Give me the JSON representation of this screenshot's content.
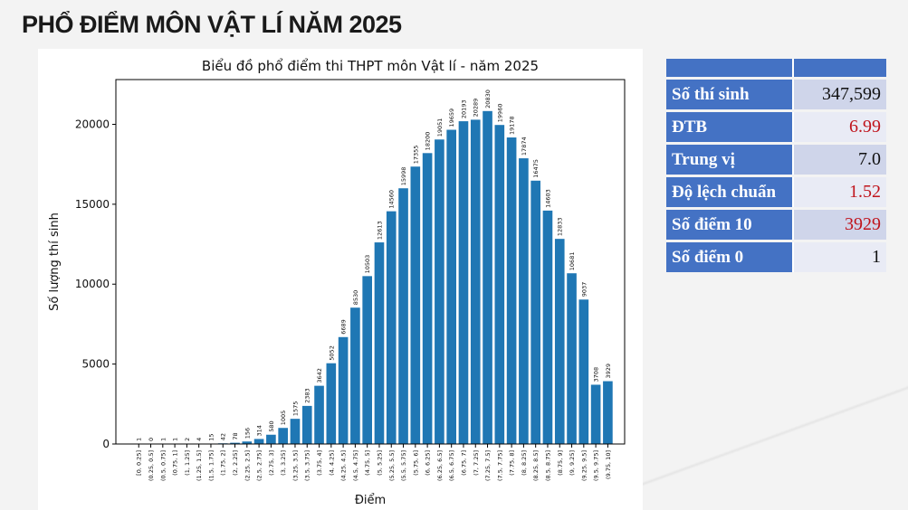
{
  "page_title": "PHỔ ĐIỂM MÔN VẬT LÍ NĂM 2025",
  "stats": [
    {
      "label": "Số thí sinh",
      "value": "347,599",
      "highlight": false
    },
    {
      "label": "ĐTB",
      "value": "6.99",
      "highlight": true
    },
    {
      "label": "Trung vị",
      "value": "7.0",
      "highlight": false
    },
    {
      "label": "Độ lệch chuẩn",
      "value": "1.52",
      "highlight": true
    },
    {
      "label": "Số điểm 10",
      "value": "3929",
      "highlight": true
    },
    {
      "label": "Số điểm 0",
      "value": "1",
      "highlight": false
    }
  ],
  "chart_data": {
    "type": "bar",
    "title": "Biểu đồ phổ điểm thi THPT môn Vật lí - năm 2025",
    "xlabel": "Điểm",
    "ylabel": "Số lượng thí sinh",
    "ylim": [
      0,
      22800
    ],
    "yticks": [
      0,
      5000,
      10000,
      15000,
      20000
    ],
    "bar_color": "#1f77b4",
    "categories": [
      "[0, 0.25]",
      "(0.25, 0.5]",
      "(0.5, 0.75]",
      "(0.75, 1]",
      "(1, 1.25]",
      "(1.25, 1.5]",
      "(1.5, 1.75]",
      "(1.75, 2]",
      "(2, 2.25]",
      "(2.25, 2.5]",
      "(2.5, 2.75]",
      "(2.75, 3]",
      "(3, 3.25]",
      "(3.25, 3.5]",
      "(3.5, 3.75]",
      "(3.75, 4]",
      "(4, 4.25]",
      "(4.25, 4.5]",
      "(4.5, 4.75]",
      "(4.75, 5]",
      "(5, 5.25]",
      "(5.25, 5.5]",
      "(5.5, 5.75]",
      "(5.75, 6]",
      "(6, 6.25]",
      "(6.25, 6.5]",
      "(6.5, 6.75]",
      "(6.75, 7]",
      "(7, 7.25]",
      "(7.25, 7.5]",
      "(7.5, 7.75]",
      "(7.75, 8]",
      "(8, 8.25]",
      "(8.25, 8.5]",
      "(8.5, 8.75]",
      "(8.75, 9]",
      "(9, 9.25]",
      "(9.25, 9.5]",
      "(9.5, 9.75]",
      "(9.75, 10]"
    ],
    "values": [
      1,
      0,
      1,
      1,
      2,
      4,
      15,
      42,
      78,
      156,
      314,
      580,
      1005,
      1575,
      2383,
      3642,
      5052,
      6689,
      8530,
      10503,
      12613,
      14560,
      15998,
      17355,
      18200,
      19051,
      19659,
      20193,
      20289,
      20830,
      19960,
      19178,
      17874,
      16475,
      14603,
      12833,
      10681,
      9037,
      3708,
      3929
    ]
  }
}
